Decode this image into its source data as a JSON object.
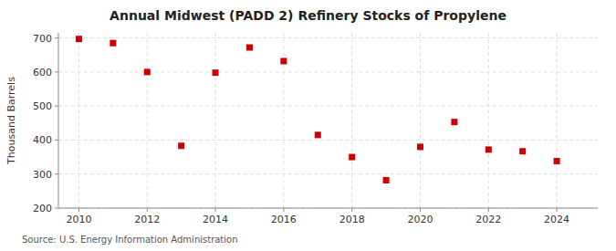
{
  "chart_data": {
    "type": "scatter",
    "title": "Annual Midwest (PADD 2) Refinery Stocks of Propylene",
    "y_label": "Thousand Barrels",
    "source": "Source: U.S. Energy Information Administration",
    "x": [
      2010,
      2011,
      2012,
      2013,
      2014,
      2015,
      2016,
      2017,
      2018,
      2019,
      2020,
      2021,
      2022,
      2023,
      2024
    ],
    "values": [
      697,
      685,
      600,
      383,
      598,
      672,
      632,
      415,
      350,
      282,
      380,
      453,
      372,
      367,
      338
    ],
    "color": "#cc0000",
    "marker": "square",
    "xlim": [
      2009.4,
      2025.2
    ],
    "xticks": [
      2010,
      2012,
      2014,
      2016,
      2018,
      2020,
      2022,
      2024
    ],
    "ylim": [
      200,
      715
    ],
    "yticks": [
      200,
      300,
      400,
      500,
      600,
      700
    ],
    "grid": true
  }
}
